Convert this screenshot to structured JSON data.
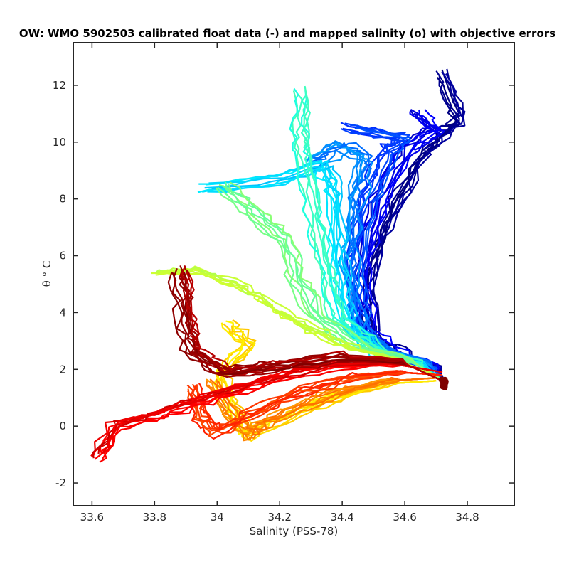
{
  "chart_data": {
    "type": "line",
    "title": "OW: WMO 5902503 calibrated float data (-) and mapped salinity (o) with objective errors",
    "xlabel": "Salinity (PSS-78)",
    "ylabel": "θ ° C",
    "xlim": [
      33.54,
      34.95
    ],
    "ylim": [
      -2.8,
      13.5
    ],
    "xticks": [
      33.6,
      33.8,
      34,
      34.2,
      34.4,
      34.6,
      34.8
    ],
    "yticks": [
      -2,
      0,
      2,
      4,
      6,
      8,
      10,
      12
    ],
    "xtick_labels": [
      "33.6",
      "33.8",
      "34",
      "34.2",
      "34.4",
      "34.6",
      "34.8"
    ],
    "ytick_labels": [
      "-2",
      "0",
      "2",
      "4",
      "6",
      "8",
      "10",
      "12"
    ],
    "grid": false,
    "colormap": "jet",
    "colormap_stops": [
      "#00007f",
      "#0000ff",
      "#007fff",
      "#00ffff",
      "#7fff7f",
      "#ffff00",
      "#ff7f00",
      "#ff0000",
      "#7f0000"
    ],
    "series_groups": [
      {
        "color_index": 0.02,
        "count": 8,
        "path": [
          [
            34.73,
            1.5
          ],
          [
            34.71,
            2.0
          ],
          [
            34.6,
            2.4
          ],
          [
            34.5,
            3.0
          ],
          [
            34.48,
            5.0
          ],
          [
            34.56,
            7.5
          ],
          [
            34.66,
            9.5
          ],
          [
            34.73,
            10.3
          ],
          [
            34.78,
            10.8
          ],
          [
            34.72,
            12.4
          ]
        ]
      },
      {
        "color_index": 0.1,
        "count": 8,
        "path": [
          [
            34.73,
            1.5
          ],
          [
            34.7,
            2.1
          ],
          [
            34.58,
            2.5
          ],
          [
            34.49,
            3.2
          ],
          [
            34.46,
            5.2
          ],
          [
            34.52,
            7.8
          ],
          [
            34.62,
            9.8
          ],
          [
            34.7,
            10.4
          ],
          [
            34.64,
            11.0
          ]
        ]
      },
      {
        "color_index": 0.18,
        "count": 8,
        "path": [
          [
            34.73,
            1.5
          ],
          [
            34.69,
            2.1
          ],
          [
            34.56,
            2.5
          ],
          [
            34.47,
            3.3
          ],
          [
            34.44,
            5.4
          ],
          [
            34.48,
            8.0
          ],
          [
            34.55,
            9.7
          ],
          [
            34.6,
            10.2
          ],
          [
            34.42,
            10.6
          ]
        ]
      },
      {
        "color_index": 0.26,
        "count": 8,
        "path": [
          [
            34.72,
            1.6
          ],
          [
            34.68,
            2.2
          ],
          [
            34.54,
            2.6
          ],
          [
            34.45,
            3.5
          ],
          [
            34.42,
            5.6
          ],
          [
            34.44,
            8.0
          ],
          [
            34.48,
            9.4
          ],
          [
            34.4,
            9.8
          ],
          [
            34.3,
            9.2
          ]
        ]
      },
      {
        "color_index": 0.34,
        "count": 8,
        "path": [
          [
            34.72,
            1.6
          ],
          [
            34.66,
            2.2
          ],
          [
            34.52,
            2.6
          ],
          [
            34.42,
            3.6
          ],
          [
            34.39,
            5.8
          ],
          [
            34.38,
            8.2
          ],
          [
            34.34,
            9.2
          ],
          [
            34.2,
            8.7
          ],
          [
            33.96,
            8.4
          ]
        ]
      },
      {
        "color_index": 0.42,
        "count": 7,
        "path": [
          [
            34.71,
            1.7
          ],
          [
            34.64,
            2.2
          ],
          [
            34.5,
            2.7
          ],
          [
            34.38,
            3.8
          ],
          [
            34.34,
            5.6
          ],
          [
            34.3,
            7.5
          ],
          [
            34.27,
            9.5
          ],
          [
            34.26,
            10.5
          ],
          [
            34.26,
            11.8
          ]
        ]
      },
      {
        "color_index": 0.5,
        "count": 7,
        "path": [
          [
            34.71,
            1.7
          ],
          [
            34.62,
            2.3
          ],
          [
            34.46,
            2.8
          ],
          [
            34.32,
            3.9
          ],
          [
            34.26,
            5.2
          ],
          [
            34.22,
            6.6
          ],
          [
            34.12,
            7.5
          ],
          [
            34.02,
            8.5
          ]
        ]
      },
      {
        "color_index": 0.58,
        "count": 7,
        "path": [
          [
            34.7,
            1.8
          ],
          [
            34.58,
            2.3
          ],
          [
            34.42,
            2.7
          ],
          [
            34.26,
            3.5
          ],
          [
            34.16,
            4.2
          ],
          [
            34.06,
            4.9
          ],
          [
            33.92,
            5.4
          ],
          [
            33.8,
            5.3
          ]
        ]
      },
      {
        "color_index": 0.66,
        "count": 7,
        "path": [
          [
            34.7,
            1.6
          ],
          [
            34.55,
            1.5
          ],
          [
            34.38,
            1.0
          ],
          [
            34.22,
            0.3
          ],
          [
            34.1,
            -0.3
          ],
          [
            34.06,
            0.5
          ],
          [
            34.02,
            1.8
          ],
          [
            34.1,
            2.9
          ],
          [
            34.04,
            3.6
          ]
        ]
      },
      {
        "color_index": 0.74,
        "count": 7,
        "path": [
          [
            34.7,
            1.7
          ],
          [
            34.56,
            1.6
          ],
          [
            34.4,
            1.2
          ],
          [
            34.26,
            0.6
          ],
          [
            34.14,
            0.0
          ],
          [
            34.1,
            -0.4
          ],
          [
            34.04,
            0.4
          ],
          [
            33.98,
            1.5
          ]
        ]
      },
      {
        "color_index": 0.82,
        "count": 8,
        "path": [
          [
            34.72,
            1.8
          ],
          [
            34.58,
            1.9
          ],
          [
            34.42,
            1.7
          ],
          [
            34.26,
            1.2
          ],
          [
            34.1,
            0.4
          ],
          [
            34.0,
            -0.2
          ],
          [
            33.94,
            0.4
          ],
          [
            33.92,
            1.4
          ]
        ]
      },
      {
        "color_index": 0.9,
        "count": 10,
        "path": [
          [
            34.72,
            1.9
          ],
          [
            34.56,
            2.2
          ],
          [
            34.36,
            2.1
          ],
          [
            34.16,
            1.6
          ],
          [
            33.98,
            1.0
          ],
          [
            33.84,
            0.5
          ],
          [
            33.68,
            0.0
          ],
          [
            33.62,
            -1.1
          ]
        ]
      },
      {
        "color_index": 0.97,
        "count": 12,
        "path": [
          [
            34.72,
            1.6
          ],
          [
            34.58,
            2.3
          ],
          [
            34.38,
            2.4
          ],
          [
            34.18,
            2.1
          ],
          [
            34.02,
            1.9
          ],
          [
            33.92,
            2.6
          ],
          [
            33.9,
            3.8
          ],
          [
            33.88,
            5.5
          ]
        ]
      }
    ],
    "mapped_salinity_marker": {
      "x": 34.725,
      "y": 1.5,
      "color": "#7f0000"
    }
  }
}
